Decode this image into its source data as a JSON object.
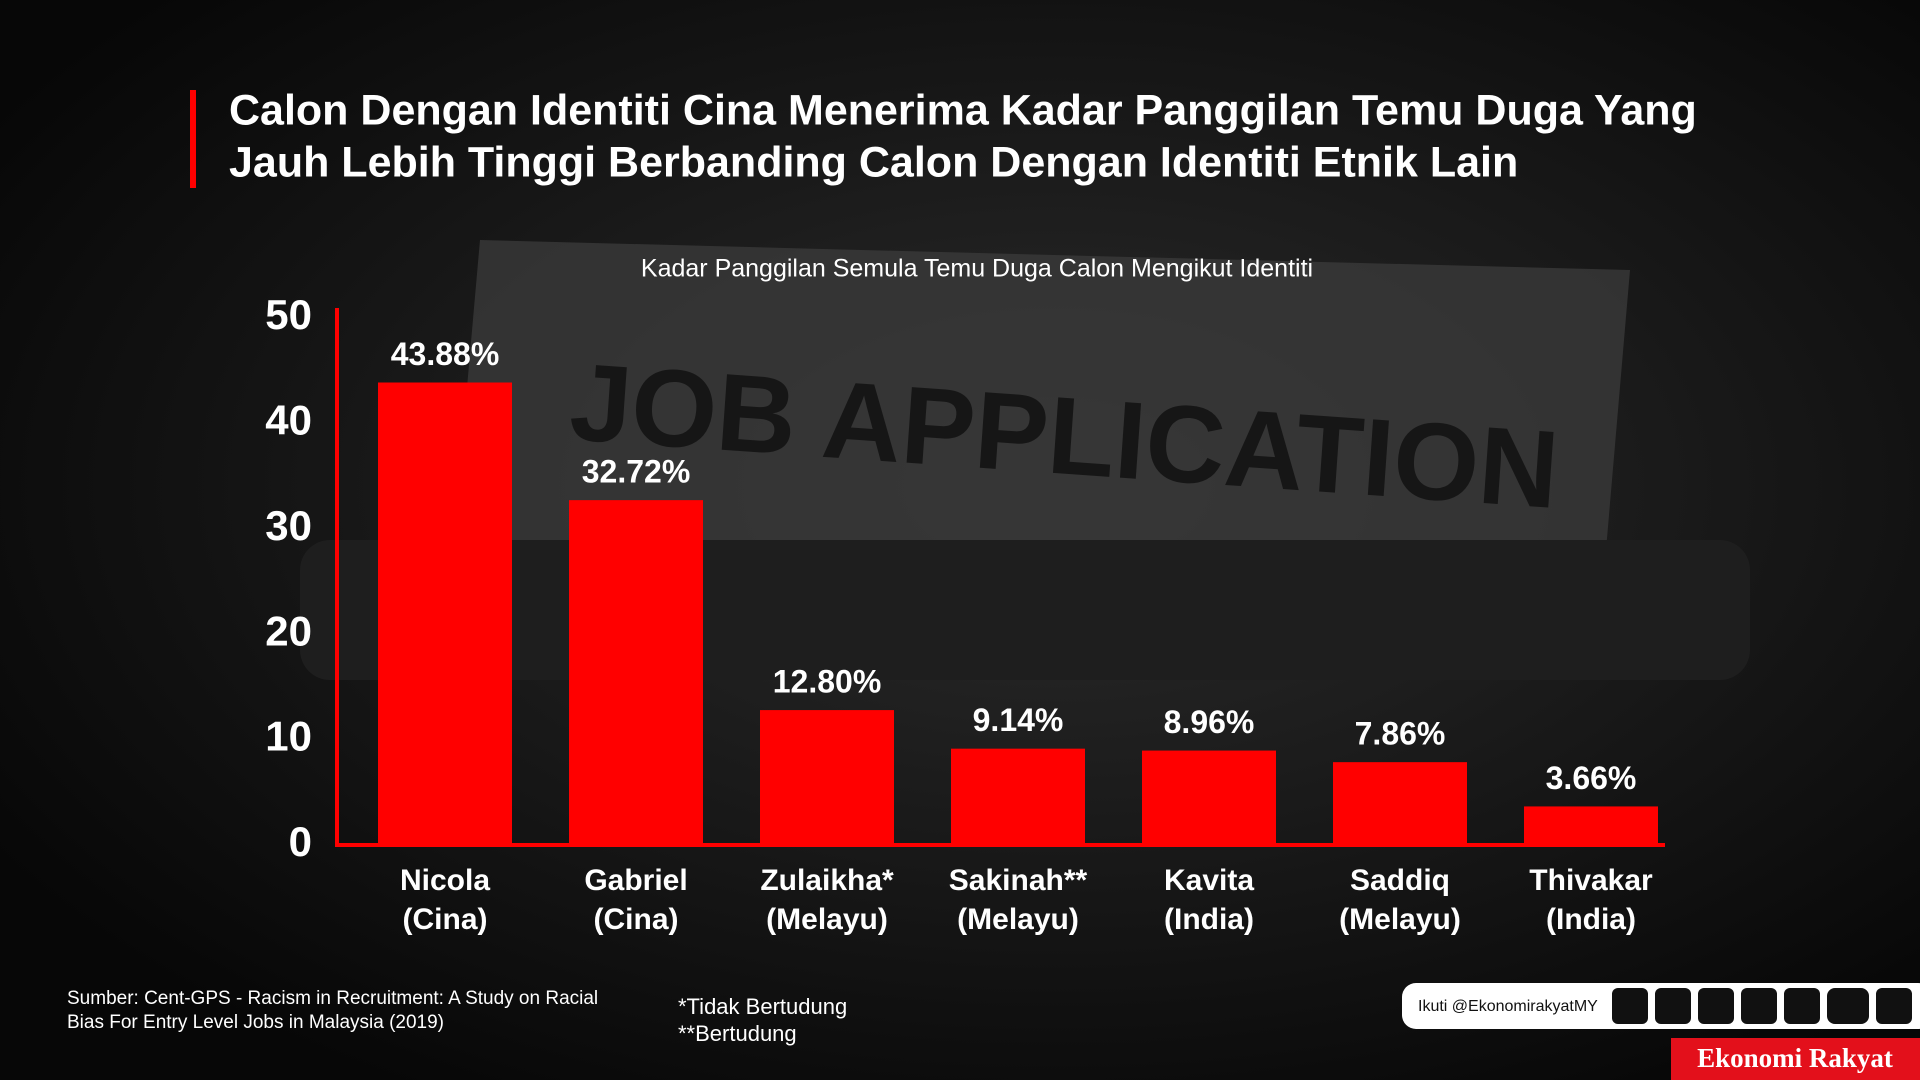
{
  "chart_data": {
    "type": "bar",
    "title": [
      "Calon Dengan Identiti Cina Menerima Kadar Panggilan Temu Duga Yang",
      "Jauh Lebih Tinggi Berbanding Calon Dengan Identiti Etnik Lain"
    ],
    "subtitle": "Kadar Panggilan Semula Temu Duga Calon Mengikut Identiti",
    "categories": [
      [
        "Nicola",
        "(Cina)"
      ],
      [
        "Gabriel",
        "(Cina)"
      ],
      [
        "Zulaikha*",
        "(Melayu)"
      ],
      [
        "Sakinah**",
        "(Melayu)"
      ],
      [
        "Kavita",
        "(India)"
      ],
      [
        "Saddiq",
        "(Melayu)"
      ],
      [
        "Thivakar",
        "(India)"
      ]
    ],
    "values": [
      43.88,
      32.72,
      12.8,
      9.14,
      8.96,
      7.86,
      3.66
    ],
    "value_labels": [
      "43.88%",
      "32.72%",
      "12.80%",
      "9.14%",
      "8.96%",
      "7.86%",
      "3.66%"
    ],
    "color": "#ff0000",
    "ylim": [
      0,
      50
    ],
    "yticks": [
      0,
      10,
      20,
      30,
      40,
      50
    ],
    "grid": false
  },
  "background_text": "JOB APPLICATION",
  "source": [
    "Sumber: Cent-GPS - Racism in Recruitment: A Study on Racial",
    "Bias For Entry Level Jobs in Malaysia (2019)"
  ],
  "notes": [
    "*Tidak Bertudung",
    "**Bertudung"
  ],
  "follow": "Ikuti @EkonomirakyatMY",
  "brand": "Ekonomi Rakyat"
}
